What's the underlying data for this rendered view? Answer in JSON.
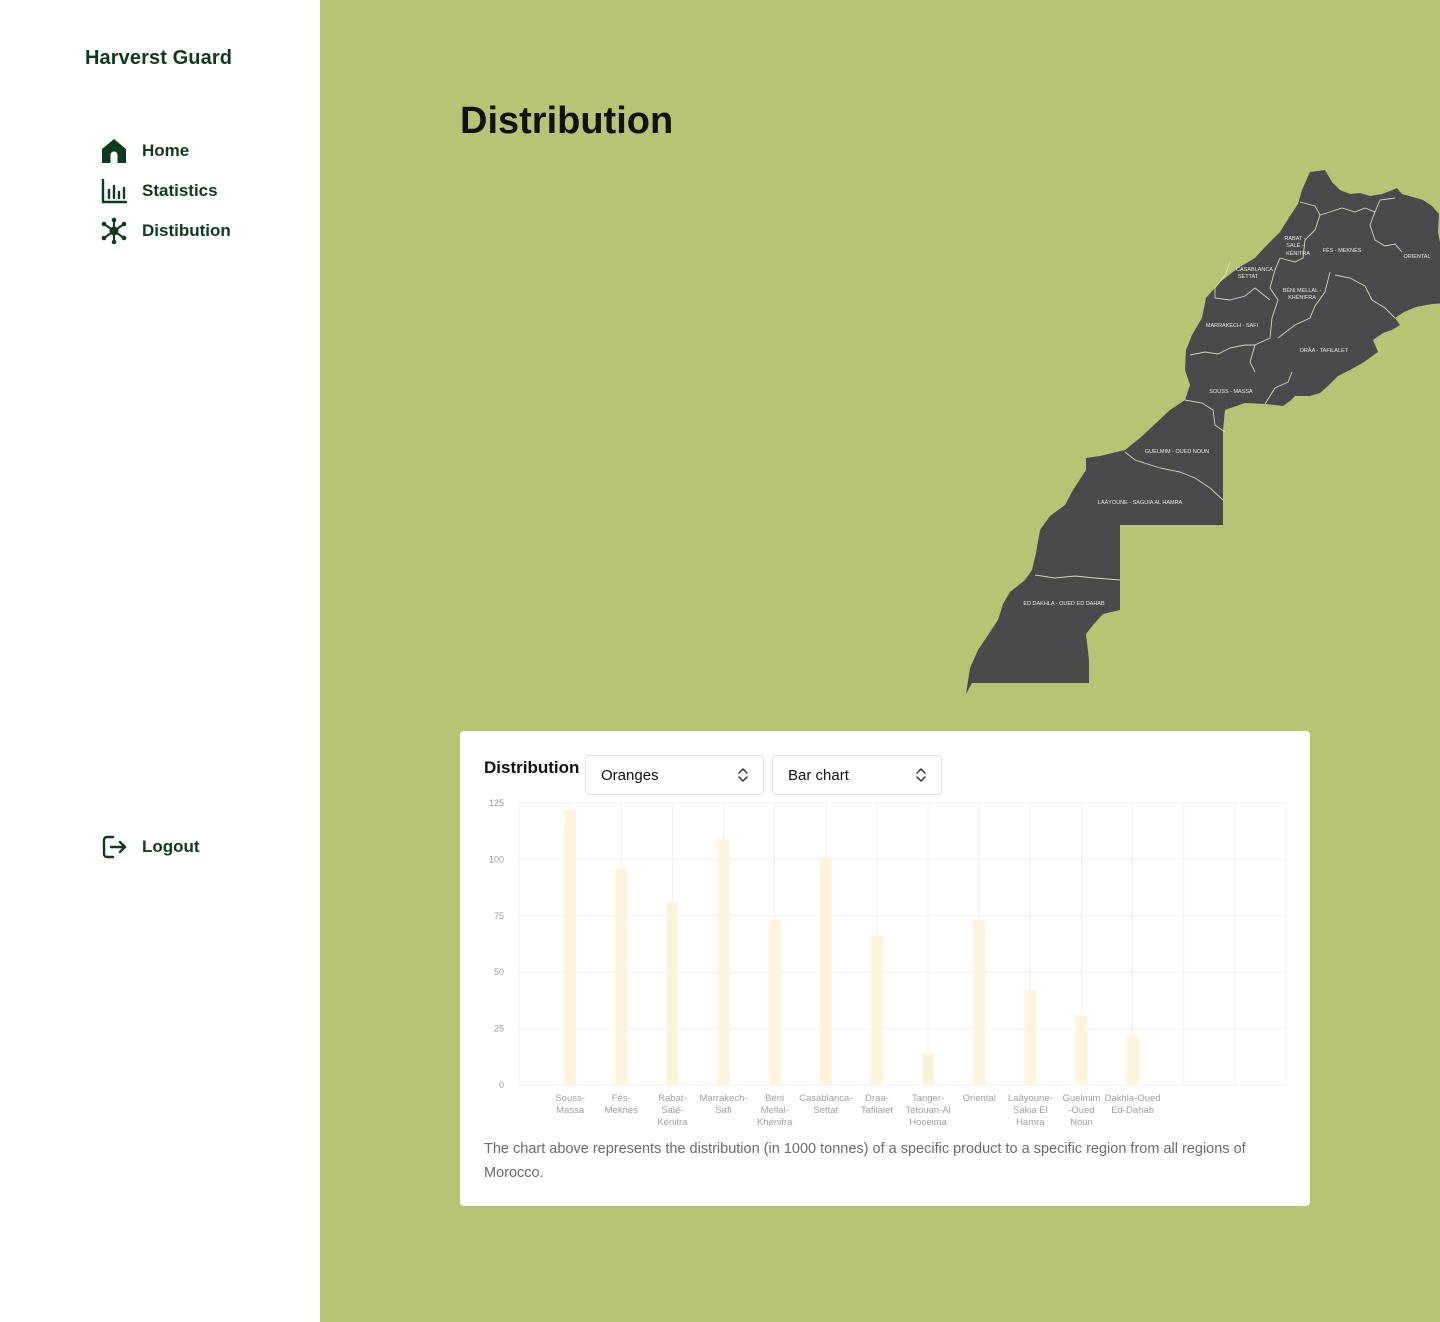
{
  "brand": "Harverst Guard",
  "nav": {
    "home": "Home",
    "statistics": "Statistics",
    "distribution": "Distibution",
    "logout": "Logout"
  },
  "page_title": "Distribution",
  "map_regions": {
    "rabat": [
      "RABAT -",
      "SALÉ -",
      "KÉNITRA"
    ],
    "fes": "FÈS - MEKNÈS",
    "oriental": "ORIENTAL",
    "casablanca": [
      "CASABLANCA -",
      "SETTAT"
    ],
    "beni": [
      "BÉNI MELLAL -",
      "KHÉNIFRA"
    ],
    "marrakech": "MARRAKECH - SAFI",
    "draa": "DRÂA - TAFILALET",
    "souss": "SOUSS - MASSA",
    "guelmim": "GUELMIM - OUED NOUN",
    "laayoune": "LAÂYOUNE - SAGUIA AL HAMRA",
    "dakhla": "ED DAKHLA - OUED ED DAHAB"
  },
  "card": {
    "title": "Distribution",
    "product_select": "Oranges",
    "chart_type_select": "Bar chart",
    "caption": "The chart above represents the distribution (in 1000 tonnes) of a specific product to a specific region from all regions of Morocco."
  },
  "colors": {
    "sidebar_bg": "#ffffff",
    "main_bg": "#b6c473",
    "brand_green": "#0f3a1e",
    "map_fill": "#4a4a4c",
    "bar_fill": "#fff3dc"
  },
  "chart_data": {
    "type": "bar",
    "categories": [
      [
        "Souss-",
        "Massa"
      ],
      [
        "Fès-",
        "Meknès"
      ],
      [
        "Rabat-",
        "Salé-",
        "Kénitra"
      ],
      [
        "Marrakech-",
        "Safi"
      ],
      [
        "Béni",
        "Mellal-",
        "Khénifra"
      ],
      [
        "Casablanca-",
        "Settat"
      ],
      [
        "Draa-",
        "Tafilalet"
      ],
      [
        "Tanger-",
        "Tetouan-Al",
        "Hoceima"
      ],
      [
        "Oriental"
      ],
      [
        "Laâyoune-",
        "Sakia El",
        "Hamra"
      ],
      [
        "Guelmim",
        "-Oued",
        "Noun"
      ],
      [
        "Dakhla-Oued",
        "Ed-Dahab"
      ]
    ],
    "values": [
      122,
      96,
      81,
      109,
      73,
      101,
      66,
      14,
      73,
      42,
      31,
      22
    ],
    "ylim": [
      0,
      125
    ],
    "yticks": [
      0,
      25,
      50,
      75,
      100,
      125
    ],
    "grid": true
  }
}
